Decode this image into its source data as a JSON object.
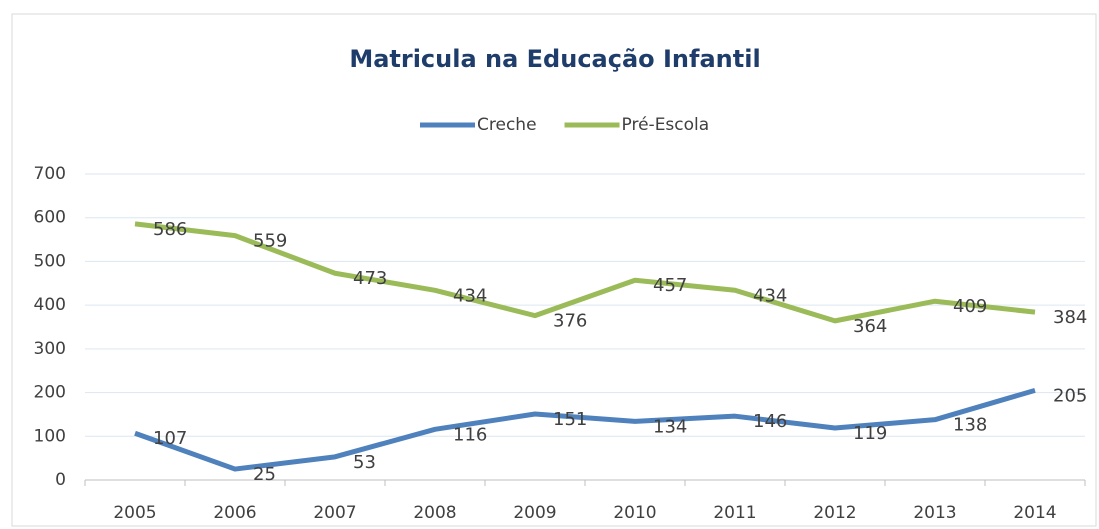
{
  "chart_data": {
    "type": "line",
    "title": "Matricula na Educação Infantil",
    "categories": [
      "2005",
      "2006",
      "2007",
      "2008",
      "2009",
      "2010",
      "2011",
      "2012",
      "2013",
      "2014"
    ],
    "series": [
      {
        "name": "Creche",
        "color": "#4f81bd",
        "values": [
          107,
          25,
          53,
          116,
          151,
          134,
          146,
          119,
          138,
          205
        ]
      },
      {
        "name": "Pré-Escola",
        "color": "#9bbb59",
        "values": [
          586,
          559,
          473,
          434,
          376,
          457,
          434,
          364,
          409,
          384
        ]
      }
    ],
    "ylim": [
      0,
      700
    ],
    "yticks": [
      0,
      100,
      200,
      300,
      400,
      500,
      600,
      700
    ],
    "grid": true,
    "legend": "top"
  }
}
